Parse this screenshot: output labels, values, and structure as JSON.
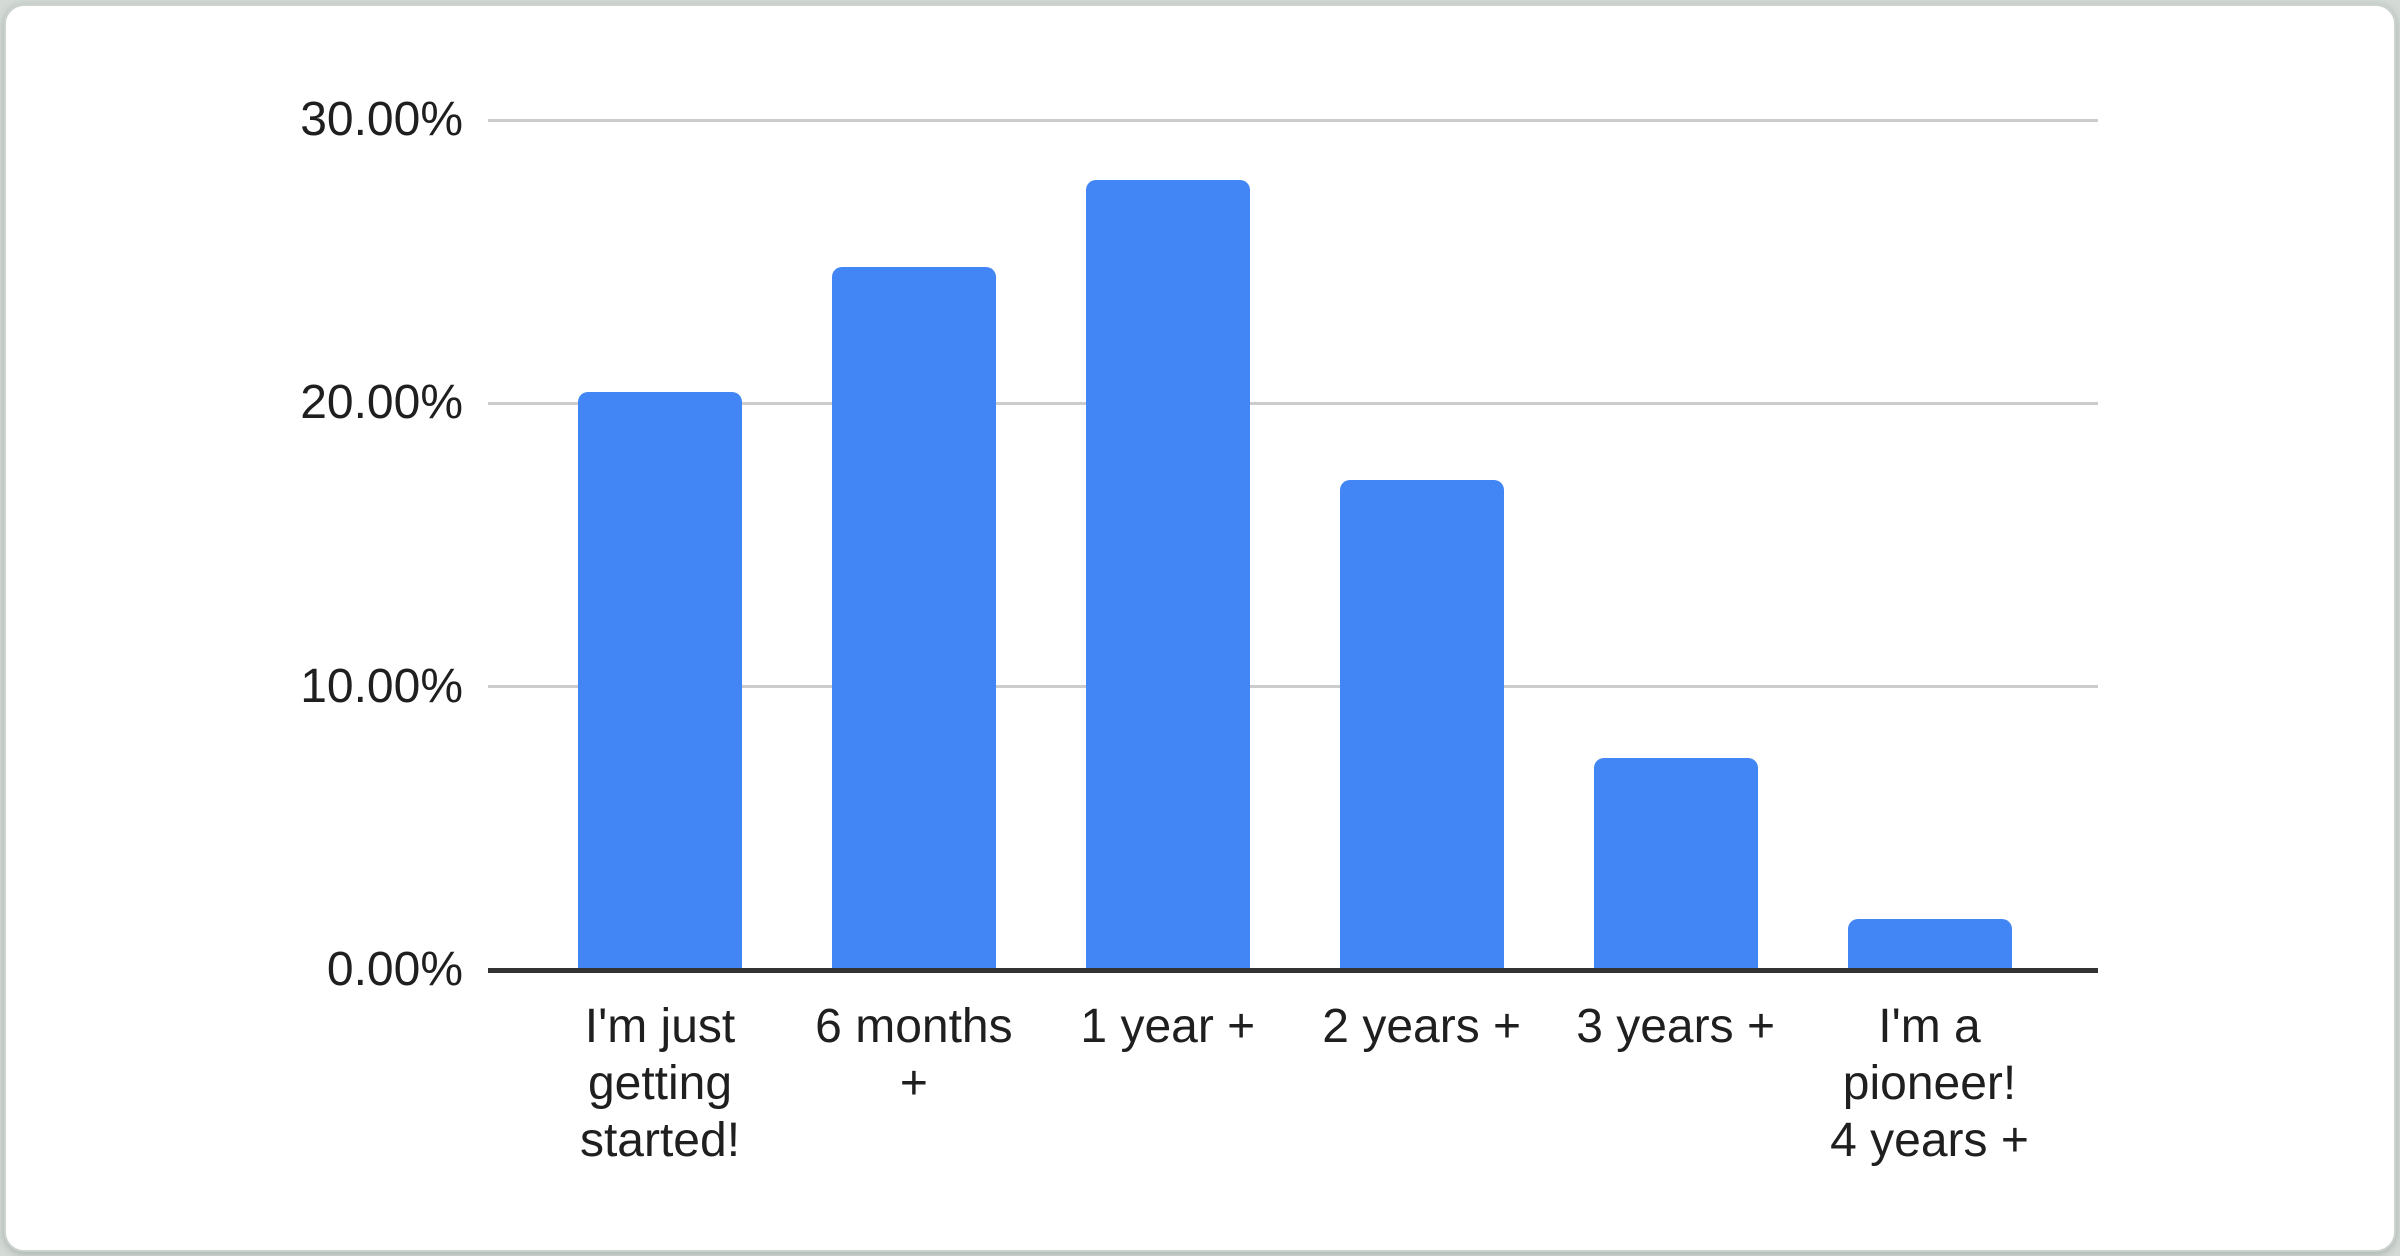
{
  "page": {
    "outer_background": "#d4dad6",
    "card_background": "#ffffff"
  },
  "chart_data": {
    "type": "bar",
    "title": "",
    "xlabel": "",
    "ylabel": "",
    "categories": [
      "I'm just getting started!",
      "6 months +",
      "1 year +",
      "2 years +",
      "3 years +",
      "I'm a pioneer! 4 years +"
    ],
    "category_lines": [
      [
        "I'm just",
        "getting",
        "started!"
      ],
      [
        "6 months",
        "+"
      ],
      [
        "1 year +"
      ],
      [
        "2 years +"
      ],
      [
        "3 years +"
      ],
      [
        "I'm a",
        "pioneer!",
        "4 years +"
      ]
    ],
    "values": [
      20.4,
      24.8,
      27.9,
      17.3,
      7.5,
      1.8
    ],
    "unit": "%",
    "ylim": [
      0,
      30
    ],
    "yticks": [
      {
        "value": 0,
        "label": "0.00%"
      },
      {
        "value": 10,
        "label": "10.00%"
      },
      {
        "value": 20,
        "label": "20.00%"
      },
      {
        "value": 30,
        "label": "30.00%"
      }
    ],
    "grid": true,
    "legend_position": "none",
    "bar_color": "#4285F4",
    "gridline_color": "#cccccc",
    "axis_line_color": "#333333",
    "label_color": "#1f1f1f"
  }
}
